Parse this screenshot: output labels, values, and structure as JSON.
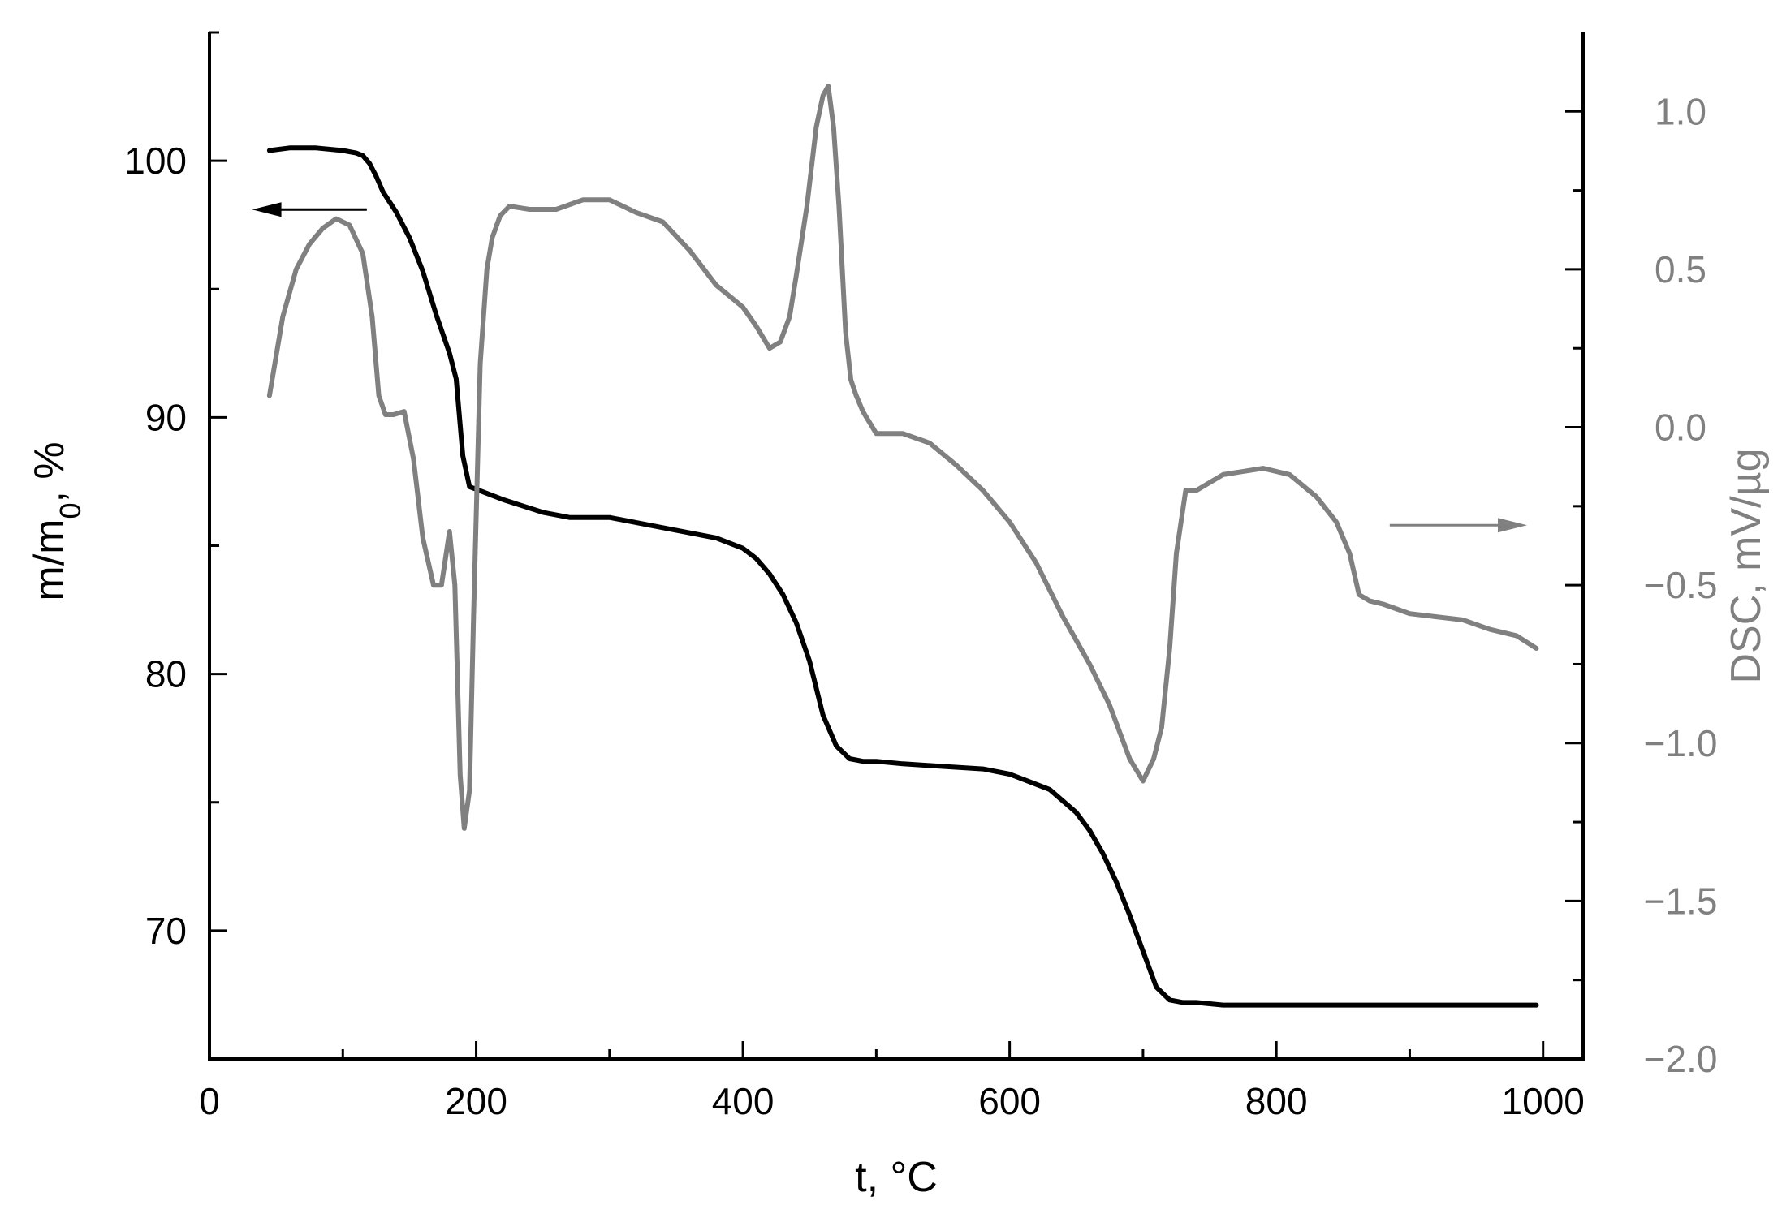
{
  "chart_data": {
    "type": "line",
    "xlabel": "t, °C",
    "ylabel_left": {
      "base": "m/m",
      "sub": "0",
      "rest": ", %"
    },
    "ylabel_right": "DSC, mV/µg",
    "xlim": [
      0,
      1030
    ],
    "ylim_left": [
      65,
      105
    ],
    "ylim_right": [
      -2.0,
      1.25
    ],
    "x_ticks": [
      0,
      200,
      400,
      600,
      800,
      1000
    ],
    "x_tick_labels": [
      "0",
      "200",
      "400",
      "600",
      "800",
      "1000"
    ],
    "y_left_ticks": [
      70,
      80,
      90,
      100
    ],
    "y_left_tick_labels": [
      "70",
      "80",
      "90",
      "100"
    ],
    "y_right_ticks": [
      -2.0,
      -1.5,
      -1.0,
      -0.5,
      0.0,
      0.5,
      1.0
    ],
    "y_right_tick_labels": [
      "−2.0",
      "−1.5",
      "−1.0",
      "−0.5",
      "0.0",
      "0.5",
      "1.0"
    ],
    "grid": false,
    "colors": {
      "tg": "#000000",
      "dsc": "#808080",
      "axis_left": "#000000",
      "axis_right": "#808080"
    },
    "series": [
      {
        "axis": "left",
        "color": "#000000",
        "x": [
          45,
          60,
          80,
          100,
          110,
          115,
          120,
          125,
          130,
          140,
          150,
          160,
          170,
          180,
          185,
          190,
          195,
          200,
          220,
          250,
          270,
          300,
          330,
          360,
          380,
          400,
          410,
          420,
          430,
          440,
          450,
          460,
          470,
          480,
          490,
          500,
          520,
          550,
          580,
          600,
          610,
          630,
          650,
          660,
          670,
          680,
          690,
          700,
          710,
          720,
          730,
          740,
          760,
          800,
          850,
          900,
          950,
          995
        ],
        "y": [
          100.4,
          100.5,
          100.5,
          100.4,
          100.3,
          100.2,
          99.9,
          99.4,
          98.8,
          98.0,
          97.0,
          95.7,
          94.0,
          92.5,
          91.5,
          88.5,
          87.3,
          87.2,
          86.8,
          86.3,
          86.1,
          86.1,
          85.8,
          85.5,
          85.3,
          84.9,
          84.5,
          83.9,
          83.1,
          82.0,
          80.5,
          78.4,
          77.2,
          76.7,
          76.6,
          76.6,
          76.5,
          76.4,
          76.3,
          76.1,
          75.9,
          75.5,
          74.6,
          73.9,
          73.0,
          71.9,
          70.6,
          69.2,
          67.8,
          67.3,
          67.2,
          67.2,
          67.1,
          67.1,
          67.1,
          67.1,
          67.1,
          67.1
        ]
      },
      {
        "axis": "right",
        "color": "#808080",
        "x": [
          45,
          55,
          65,
          75,
          85,
          95,
          105,
          115,
          122,
          127,
          132,
          138,
          146,
          153,
          160,
          168,
          174,
          180,
          184,
          188,
          191,
          195,
          198,
          203,
          208,
          212,
          218,
          225,
          240,
          260,
          280,
          300,
          320,
          340,
          360,
          380,
          400,
          410,
          420,
          428,
          435,
          440,
          448,
          455,
          460,
          464,
          468,
          472,
          477,
          481,
          485,
          490,
          500,
          520,
          540,
          560,
          580,
          600,
          620,
          640,
          660,
          675,
          690,
          700,
          708,
          714,
          720,
          725,
          732,
          740,
          760,
          790,
          810,
          830,
          845,
          855,
          862,
          870,
          880,
          900,
          920,
          940,
          960,
          980,
          995
        ],
        "y": [
          0.1,
          0.35,
          0.5,
          0.58,
          0.63,
          0.66,
          0.64,
          0.55,
          0.35,
          0.1,
          0.04,
          0.04,
          0.05,
          -0.1,
          -0.35,
          -0.5,
          -0.5,
          -0.33,
          -0.5,
          -1.1,
          -1.27,
          -1.15,
          -0.6,
          0.2,
          0.5,
          0.6,
          0.67,
          0.7,
          0.69,
          0.69,
          0.72,
          0.72,
          0.68,
          0.65,
          0.56,
          0.45,
          0.38,
          0.32,
          0.25,
          0.27,
          0.35,
          0.48,
          0.7,
          0.95,
          1.05,
          1.08,
          0.95,
          0.7,
          0.3,
          0.15,
          0.1,
          0.05,
          -0.02,
          -0.02,
          -0.05,
          -0.12,
          -0.2,
          -0.3,
          -0.43,
          -0.6,
          -0.75,
          -0.88,
          -1.05,
          -1.12,
          -1.05,
          -0.95,
          -0.7,
          -0.4,
          -0.2,
          -0.2,
          -0.15,
          -0.13,
          -0.15,
          -0.22,
          -0.3,
          -0.4,
          -0.53,
          -0.55,
          -0.56,
          -0.59,
          -0.6,
          -0.61,
          -0.64,
          -0.66,
          -0.7
        ]
      }
    ],
    "annotations": [
      {
        "type": "arrow",
        "points_to": "left",
        "x_from": 118,
        "x_to": 32,
        "y": 98.1,
        "axis": "left",
        "color": "#000000"
      },
      {
        "type": "arrow",
        "points_to": "right",
        "x_from": 885,
        "x_to": 988,
        "y": -0.31,
        "axis": "right",
        "color": "#808080"
      }
    ]
  }
}
